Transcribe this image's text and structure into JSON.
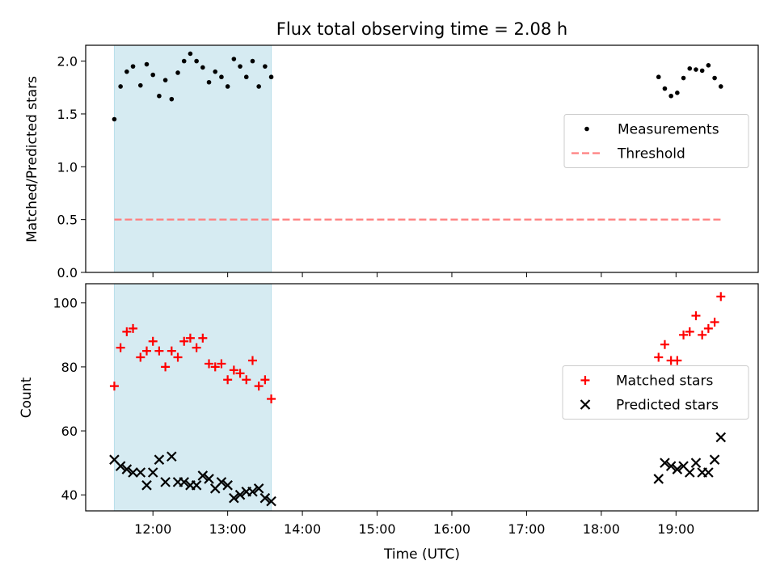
{
  "colors": {
    "span": "#add8e6",
    "measurement": "#000000",
    "threshold": "#ff7f7f",
    "matched": "#ff0000",
    "predicted": "#000000"
  },
  "chart_data": [
    {
      "type": "scatter",
      "title": "Flux total observing time = 2.08 h",
      "ylabel": "Matched/Predicted stars",
      "ylim": [
        0,
        2.15
      ],
      "yticks": [
        "0.0",
        "0.5",
        "1.0",
        "1.5",
        "2.0"
      ],
      "xlim": [
        "11:06",
        "20:06"
      ],
      "shaded_span": [
        "11:29",
        "13:35"
      ],
      "legend": {
        "position": "center-right",
        "entries": [
          "Measurements",
          "Threshold"
        ]
      },
      "series": [
        {
          "name": "Measurements",
          "marker": "dot",
          "points": [
            [
              "11:29",
              1.45
            ],
            [
              "11:34",
              1.76
            ],
            [
              "11:39",
              1.9
            ],
            [
              "11:44",
              1.95
            ],
            [
              "11:50",
              1.77
            ],
            [
              "11:55",
              1.97
            ],
            [
              "12:00",
              1.87
            ],
            [
              "12:05",
              1.67
            ],
            [
              "12:10",
              1.82
            ],
            [
              "12:15",
              1.64
            ],
            [
              "12:20",
              1.89
            ],
            [
              "12:25",
              2.0
            ],
            [
              "12:30",
              2.07
            ],
            [
              "12:35",
              2.0
            ],
            [
              "12:40",
              1.94
            ],
            [
              "12:45",
              1.8
            ],
            [
              "12:50",
              1.9
            ],
            [
              "12:55",
              1.85
            ],
            [
              "13:00",
              1.76
            ],
            [
              "13:05",
              2.02
            ],
            [
              "13:10",
              1.95
            ],
            [
              "13:15",
              1.85
            ],
            [
              "13:20",
              2.0
            ],
            [
              "13:25",
              1.76
            ],
            [
              "13:30",
              1.95
            ],
            [
              "13:35",
              1.85
            ],
            [
              "18:46",
              1.85
            ],
            [
              "18:51",
              1.74
            ],
            [
              "18:56",
              1.67
            ],
            [
              "19:01",
              1.7
            ],
            [
              "19:06",
              1.84
            ],
            [
              "19:11",
              1.93
            ],
            [
              "19:16",
              1.92
            ],
            [
              "19:21",
              1.91
            ],
            [
              "19:26",
              1.96
            ],
            [
              "19:31",
              1.84
            ],
            [
              "19:36",
              1.76
            ]
          ]
        },
        {
          "name": "Threshold",
          "style": "dashed",
          "points": [
            [
              "11:29",
              0.5
            ],
            [
              "19:36",
              0.5
            ]
          ]
        }
      ]
    },
    {
      "type": "scatter",
      "xlabel": "Time (UTC)",
      "ylabel": "Count",
      "ylim": [
        35,
        106
      ],
      "yticks": [
        "40",
        "60",
        "80",
        "100"
      ],
      "xlim": [
        "11:06",
        "20:06"
      ],
      "xticks": [
        "12:00",
        "13:00",
        "14:00",
        "15:00",
        "16:00",
        "17:00",
        "18:00",
        "19:00"
      ],
      "shaded_span": [
        "11:29",
        "13:35"
      ],
      "legend": {
        "position": "center-right",
        "entries": [
          "Matched stars",
          "Predicted stars"
        ]
      },
      "series": [
        {
          "name": "Matched stars",
          "marker": "plus",
          "points": [
            [
              "11:29",
              74
            ],
            [
              "11:34",
              86
            ],
            [
              "11:39",
              91
            ],
            [
              "11:44",
              92
            ],
            [
              "11:50",
              83
            ],
            [
              "11:55",
              85
            ],
            [
              "12:00",
              88
            ],
            [
              "12:05",
              85
            ],
            [
              "12:10",
              80
            ],
            [
              "12:15",
              85
            ],
            [
              "12:20",
              83
            ],
            [
              "12:25",
              88
            ],
            [
              "12:30",
              89
            ],
            [
              "12:35",
              86
            ],
            [
              "12:40",
              89
            ],
            [
              "12:45",
              81
            ],
            [
              "12:50",
              80
            ],
            [
              "12:55",
              81
            ],
            [
              "13:00",
              76
            ],
            [
              "13:05",
              79
            ],
            [
              "13:10",
              78
            ],
            [
              "13:15",
              76
            ],
            [
              "13:20",
              82
            ],
            [
              "13:25",
              74
            ],
            [
              "13:30",
              76
            ],
            [
              "13:35",
              70
            ],
            [
              "18:46",
              83
            ],
            [
              "18:51",
              87
            ],
            [
              "18:56",
              82
            ],
            [
              "19:01",
              82
            ],
            [
              "19:06",
              90
            ],
            [
              "19:11",
              91
            ],
            [
              "19:16",
              96
            ],
            [
              "19:21",
              90
            ],
            [
              "19:26",
              92
            ],
            [
              "19:31",
              94
            ],
            [
              "19:36",
              102
            ]
          ]
        },
        {
          "name": "Predicted stars",
          "marker": "x",
          "points": [
            [
              "11:29",
              51
            ],
            [
              "11:34",
              49
            ],
            [
              "11:39",
              48
            ],
            [
              "11:44",
              47
            ],
            [
              "11:50",
              47
            ],
            [
              "11:55",
              43
            ],
            [
              "12:00",
              47
            ],
            [
              "12:05",
              51
            ],
            [
              "12:10",
              44
            ],
            [
              "12:15",
              52
            ],
            [
              "12:20",
              44
            ],
            [
              "12:25",
              44
            ],
            [
              "12:30",
              43
            ],
            [
              "12:35",
              43
            ],
            [
              "12:40",
              46
            ],
            [
              "12:45",
              45
            ],
            [
              "12:50",
              42
            ],
            [
              "12:55",
              44
            ],
            [
              "13:00",
              43
            ],
            [
              "13:05",
              39
            ],
            [
              "13:10",
              40
            ],
            [
              "13:15",
              41
            ],
            [
              "13:20",
              41
            ],
            [
              "13:25",
              42
            ],
            [
              "13:30",
              39
            ],
            [
              "13:35",
              38
            ],
            [
              "18:46",
              45
            ],
            [
              "18:51",
              50
            ],
            [
              "18:56",
              49
            ],
            [
              "19:01",
              48
            ],
            [
              "19:06",
              49
            ],
            [
              "19:11",
              47
            ],
            [
              "19:16",
              50
            ],
            [
              "19:21",
              47
            ],
            [
              "19:26",
              47
            ],
            [
              "19:31",
              51
            ],
            [
              "19:36",
              58
            ]
          ]
        }
      ]
    }
  ]
}
